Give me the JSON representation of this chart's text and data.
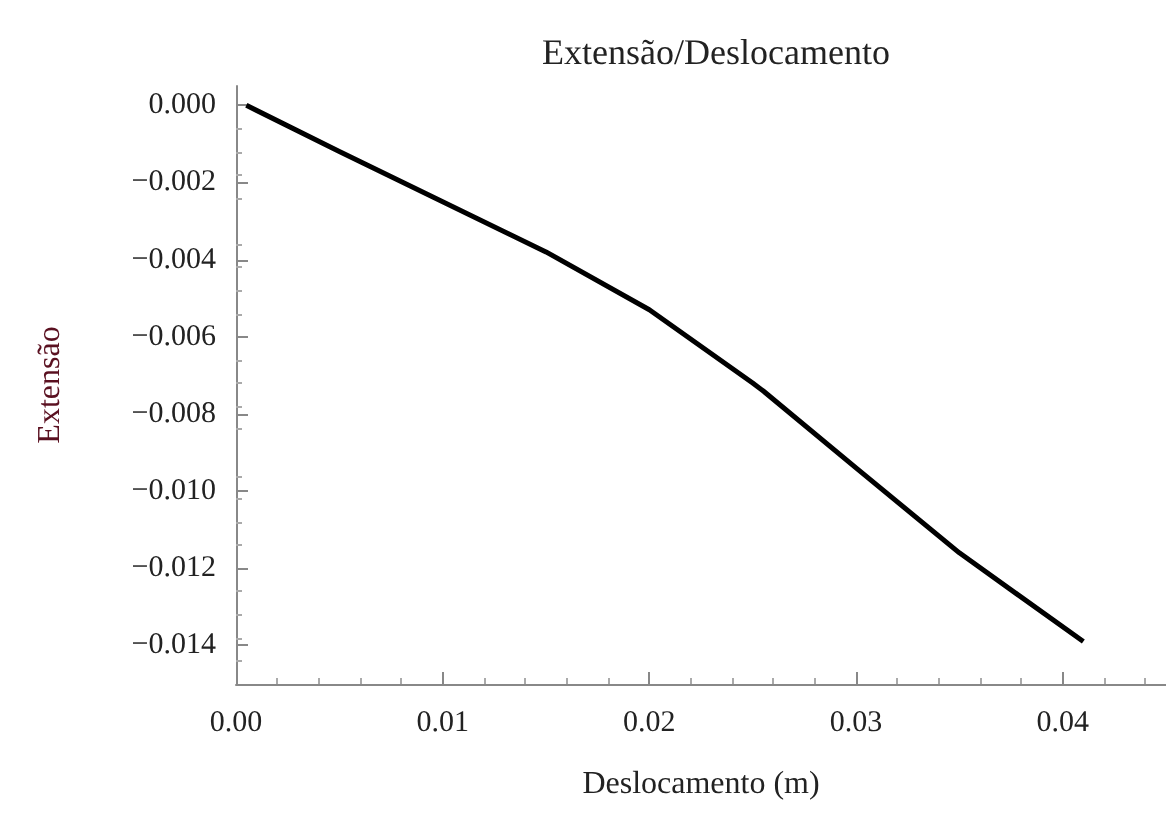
{
  "chart_data": {
    "type": "line",
    "title": "Extensão/Deslocamento",
    "xlabel": "Deslocamento (m)",
    "ylabel": "Extensão",
    "x": [
      0.0005,
      0.005,
      0.01,
      0.015,
      0.02,
      0.025,
      0.0255,
      0.03,
      0.035,
      0.041
    ],
    "series": [
      {
        "color": "#000000",
        "values": [
          0,
          -0.0012,
          -0.0025,
          -0.0038,
          -0.0053,
          -0.0072,
          -0.0074,
          -0.0094,
          -0.0116,
          -0.0139
        ]
      }
    ],
    "xlim": [
      0,
      0.045
    ],
    "ylim": [
      -0.015,
      0.0005
    ],
    "xticks": [
      {
        "value": 0,
        "label": "0.00"
      },
      {
        "value": 0.01,
        "label": "0.01"
      },
      {
        "value": 0.02,
        "label": "0.02"
      },
      {
        "value": 0.03,
        "label": "0.03"
      },
      {
        "value": 0.04,
        "label": "0.04"
      }
    ],
    "yticks": [
      {
        "value": 0,
        "label": "0.000"
      },
      {
        "value": -0.002,
        "label": "−0.002"
      },
      {
        "value": -0.004,
        "label": "−0.004"
      },
      {
        "value": -0.006,
        "label": "−0.006"
      },
      {
        "value": -0.008,
        "label": "−0.008"
      },
      {
        "value": -0.01,
        "label": "−0.010"
      },
      {
        "value": -0.012,
        "label": "−0.012"
      },
      {
        "value": -0.014,
        "label": "−0.014"
      }
    ],
    "grid": false,
    "marker": "none",
    "line_style": "solid"
  }
}
